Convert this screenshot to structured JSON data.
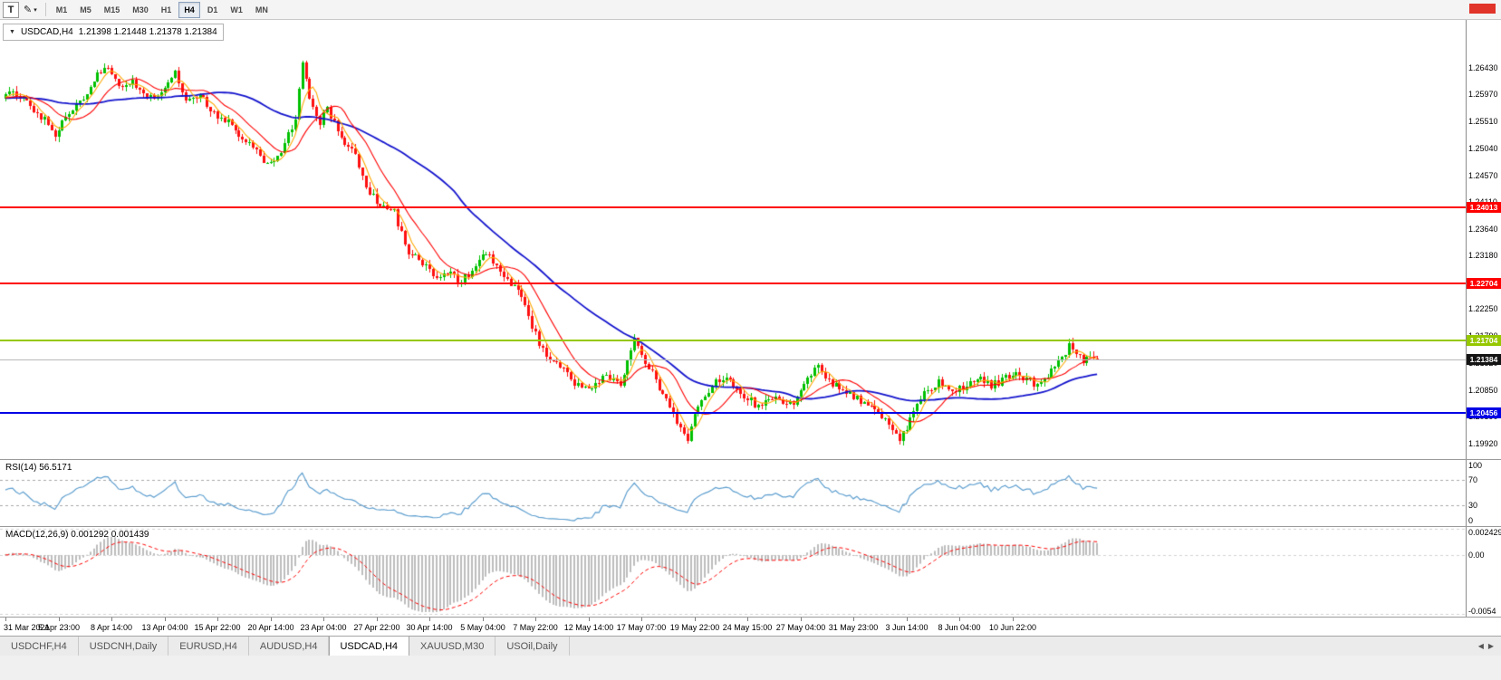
{
  "icons": {
    "caret_down": "▼",
    "pencil": "✎",
    "caret_small": "▾",
    "tab_scroll_left": "◀",
    "tab_scroll_right": "▶"
  },
  "toolbar": {
    "text_tool_label": "T",
    "timeframes": [
      "M1",
      "M5",
      "M15",
      "M30",
      "H1",
      "H4",
      "D1",
      "W1",
      "MN"
    ],
    "active_timeframe": "H4"
  },
  "chart": {
    "title_symbol": "USDCAD,H4",
    "title_ohlc": "1.21398 1.21448 1.21378 1.21384",
    "current_price": "1.21384",
    "price_axis_labels": [
      "1.26430",
      "1.25970",
      "1.25510",
      "1.25040",
      "1.24570",
      "1.24110",
      "1.23640",
      "1.23180",
      "1.22720",
      "1.22250",
      "1.21790",
      "1.21320",
      "1.20850",
      "1.20390",
      "1.19920"
    ],
    "time_axis_labels": [
      "31 Mar 2021",
      "5 Apr 23:00",
      "8 Apr 14:00",
      "13 Apr 04:00",
      "15 Apr 22:00",
      "20 Apr 14:00",
      "23 Apr 04:00",
      "27 Apr 22:00",
      "30 Apr 14:00",
      "5 May 04:00",
      "7 May 22:00",
      "12 May 14:00",
      "17 May 07:00",
      "19 May 22:00",
      "24 May 15:00",
      "27 May 04:00",
      "31 May 23:00",
      "3 Jun 14:00",
      "8 Jun 04:00",
      "10 Jun 22:00"
    ],
    "hlines": [
      {
        "label": "1.24013",
        "price": 1.24013,
        "color": "#ff0000"
      },
      {
        "label": "1.22704",
        "price": 1.22704,
        "color": "#ff0000"
      },
      {
        "label": "1.21704",
        "price": 1.21704,
        "color": "#96c800"
      },
      {
        "label": "1.20456",
        "price": 1.20456,
        "color": "#0000e6"
      }
    ],
    "current_price_line_color": "#b9b9b9",
    "current_price_tag_bg": "#141414"
  },
  "rsi": {
    "label": "RSI(14) 56.5171",
    "current_value": 56.5171,
    "axis_labels": [
      {
        "text": "100",
        "value": 100
      },
      {
        "text": "70",
        "value": 70
      },
      {
        "text": "30",
        "value": 30
      },
      {
        "text": "0",
        "value": 0
      }
    ],
    "level_lines": [
      70,
      30
    ],
    "line_color": "#5f9fcf"
  },
  "macd": {
    "label": "MACD(12,26,9) 0.001292 0.001439",
    "current_macd": 0.001292,
    "current_signal": 0.001439,
    "axis_labels": [
      {
        "text": "0.002429",
        "value": 0.002429
      },
      {
        "text": "0.00",
        "value": 0
      },
      {
        "text": "-0.0054",
        "value": -0.0054
      }
    ],
    "hist_color": "#bdbdbd",
    "signal_color": "#ff0000"
  },
  "tabs": {
    "items": [
      "USDCHF,H4",
      "USDCNH,Daily",
      "EURUSD,H4",
      "AUDUSD,H4",
      "USDCAD,H4",
      "XAUUSD,M30",
      "USOil,Daily"
    ],
    "active": "USDCAD,H4"
  },
  "chart_data": {
    "type": "candlestick",
    "symbol": "USDCAD",
    "timeframe": "H4",
    "bar_count": 310,
    "last_bar": {
      "open": 1.21398,
      "high": 1.21448,
      "low": 1.21378,
      "close": 1.21384
    },
    "visible_price_range": [
      1.19653,
      1.27261
    ],
    "hline_levels": [
      1.24013,
      1.22704,
      1.21704,
      1.20456
    ],
    "price_path_anchors": [
      [
        0,
        1.259
      ],
      [
        4,
        1.2601
      ],
      [
        8,
        1.2576
      ],
      [
        13,
        1.2546
      ],
      [
        15,
        1.2522
      ],
      [
        18,
        1.2556
      ],
      [
        23,
        1.2592
      ],
      [
        27,
        1.2632
      ],
      [
        29,
        1.2648
      ],
      [
        33,
        1.2608
      ],
      [
        37,
        1.2626
      ],
      [
        41,
        1.2586
      ],
      [
        45,
        1.26
      ],
      [
        49,
        1.2636
      ],
      [
        52,
        1.2588
      ],
      [
        56,
        1.2596
      ],
      [
        60,
        1.2562
      ],
      [
        64,
        1.2548
      ],
      [
        68,
        1.2522
      ],
      [
        72,
        1.2506
      ],
      [
        75,
        1.2472
      ],
      [
        79,
        1.2492
      ],
      [
        83,
        1.256
      ],
      [
        85,
        1.265
      ],
      [
        87,
        1.2592
      ],
      [
        90,
        1.2548
      ],
      [
        92,
        1.2572
      ],
      [
        96,
        1.2522
      ],
      [
        100,
        1.2492
      ],
      [
        104,
        1.2425
      ],
      [
        107,
        1.2408
      ],
      [
        111,
        1.2392
      ],
      [
        115,
        1.2325
      ],
      [
        119,
        1.2302
      ],
      [
        123,
        1.2282
      ],
      [
        127,
        1.2288
      ],
      [
        130,
        1.2272
      ],
      [
        134,
        1.2302
      ],
      [
        137,
        1.2322
      ],
      [
        141,
        1.2292
      ],
      [
        144,
        1.2272
      ],
      [
        148,
        1.2232
      ],
      [
        152,
        1.2162
      ],
      [
        156,
        1.2132
      ],
      [
        160,
        1.2112
      ],
      [
        164,
        1.2086
      ],
      [
        168,
        1.2096
      ],
      [
        171,
        1.2112
      ],
      [
        175,
        1.2092
      ],
      [
        179,
        1.218
      ],
      [
        181,
        1.2142
      ],
      [
        184,
        1.2112
      ],
      [
        188,
        1.2066
      ],
      [
        192,
        1.2022
      ],
      [
        194,
        1.2002
      ],
      [
        197,
        1.2062
      ],
      [
        201,
        1.2092
      ],
      [
        205,
        1.2112
      ],
      [
        209,
        1.2082
      ],
      [
        213,
        1.2062
      ],
      [
        216,
        1.2062
      ],
      [
        220,
        1.2072
      ],
      [
        224,
        1.2056
      ],
      [
        228,
        1.2102
      ],
      [
        231,
        1.2132
      ],
      [
        234,
        1.2102
      ],
      [
        238,
        1.2082
      ],
      [
        242,
        1.2072
      ],
      [
        246,
        1.2052
      ],
      [
        250,
        1.2032
      ],
      [
        254,
        1.1996
      ],
      [
        258,
        1.2042
      ],
      [
        261,
        1.2082
      ],
      [
        265,
        1.2096
      ],
      [
        269,
        1.2082
      ],
      [
        273,
        1.2092
      ],
      [
        277,
        1.2102
      ],
      [
        280,
        1.2092
      ],
      [
        284,
        1.2106
      ],
      [
        288,
        1.2112
      ],
      [
        292,
        1.2096
      ],
      [
        296,
        1.2112
      ],
      [
        300,
        1.214
      ],
      [
        302,
        1.2162
      ],
      [
        304,
        1.215
      ],
      [
        306,
        1.2138
      ],
      [
        309,
        1.21384
      ]
    ],
    "moving_averages": [
      {
        "name": "fast",
        "period": 5,
        "color": "#ffa800"
      },
      {
        "name": "mid",
        "period": 13,
        "color": "#ff0000"
      },
      {
        "name": "slow",
        "period": 45,
        "color": "#1414cd"
      }
    ],
    "candle_colors": {
      "up": "#00c000",
      "down": "#ff0f0f"
    }
  }
}
